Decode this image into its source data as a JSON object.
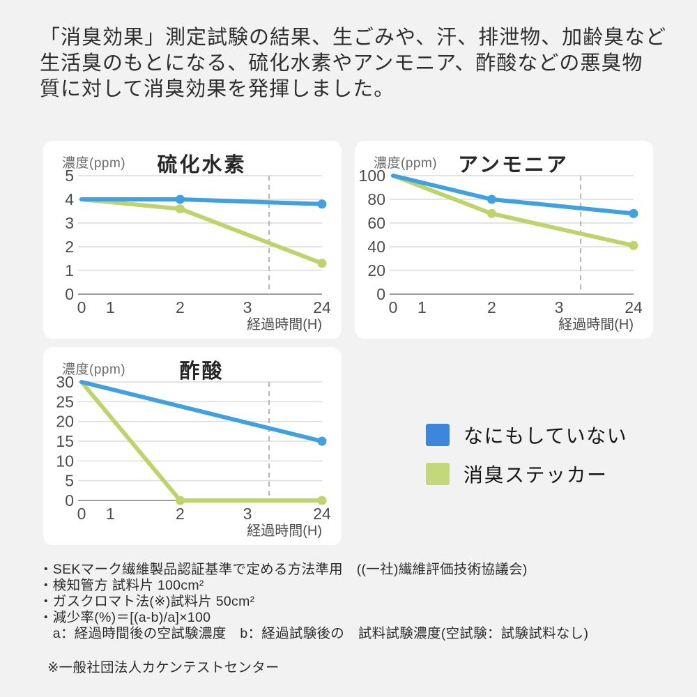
{
  "page": {
    "background": "#f2f2f3",
    "header": {
      "lines": [
        "「消臭効果」測定試験の結果、生ごみや、汗、排泄物、加齢臭など",
        "生活臭のもとになる、硫化水素やアンモニア、酢酸などの悪臭物",
        "質に対して消臭効果を発揮しました。"
      ]
    }
  },
  "chart_data": {
    "type": "line",
    "x_axis_note": "x axis is non-linear: hours 0,1,2,3 then break to 24",
    "legend": {
      "position": "bottom-right",
      "items": [
        {
          "label": "なにもしていない",
          "color": "#3c86db"
        },
        {
          "label": "消臭ステッカー",
          "color": "#c3d878"
        }
      ]
    },
    "colors": {
      "line_blue": "#41a0e0",
      "line_green": "#bdd46b",
      "grid": "#dcdcdc",
      "axis": "#9c9c9c",
      "break_line": "#b3b3b3"
    },
    "charts": [
      {
        "title": "硫化水素",
        "y_label": "濃度(ppm)",
        "x_label": "経過時間(H)",
        "y_max": 5,
        "y_ticks": [
          5,
          4,
          3,
          2,
          1,
          0
        ],
        "x_ticks": [
          {
            "v": 0,
            "f": 0
          },
          {
            "v": 1,
            "f": 0.12
          },
          {
            "v": 2,
            "f": 0.41
          },
          {
            "v": 3,
            "f": 0.69
          },
          {
            "v": 24,
            "f": 1
          }
        ],
        "axis_break_f": 0.78,
        "series": [
          {
            "name": "なにもしていない",
            "color": "#41a0e0",
            "points": [
              {
                "x": 0,
                "y": 4
              },
              {
                "x": 2,
                "y": 4,
                "dot": true
              },
              {
                "x": 24,
                "y": 3.8,
                "dot": true
              }
            ]
          },
          {
            "name": "消臭ステッカー",
            "color": "#bdd46b",
            "points": [
              {
                "x": 0,
                "y": 4
              },
              {
                "x": 2,
                "y": 3.6,
                "dot": true
              },
              {
                "x": 24,
                "y": 1.3,
                "dot": true
              }
            ]
          }
        ]
      },
      {
        "title": "アンモニア",
        "y_label": "濃度(ppm)",
        "x_label": "経過時間(H)",
        "y_max": 100,
        "y_ticks": [
          100,
          80,
          60,
          40,
          20,
          0
        ],
        "x_ticks": [
          {
            "v": 0,
            "f": 0
          },
          {
            "v": 1,
            "f": 0.12
          },
          {
            "v": 2,
            "f": 0.41
          },
          {
            "v": 3,
            "f": 0.69
          },
          {
            "v": 24,
            "f": 1
          }
        ],
        "axis_break_f": 0.78,
        "series": [
          {
            "name": "なにもしていない",
            "color": "#41a0e0",
            "points": [
              {
                "x": 0,
                "y": 100
              },
              {
                "x": 2,
                "y": 80,
                "dot": true
              },
              {
                "x": 24,
                "y": 68,
                "dot": true
              }
            ]
          },
          {
            "name": "消臭ステッカー",
            "color": "#bdd46b",
            "points": [
              {
                "x": 0,
                "y": 100
              },
              {
                "x": 2,
                "y": 68,
                "dot": true
              },
              {
                "x": 24,
                "y": 41,
                "dot": true
              }
            ]
          }
        ]
      },
      {
        "title": "酢酸",
        "y_label": "濃度(ppm)",
        "x_label": "経過時間(H)",
        "y_max": 30,
        "y_ticks": [
          30,
          25,
          20,
          15,
          10,
          5,
          0
        ],
        "x_ticks": [
          {
            "v": 0,
            "f": 0
          },
          {
            "v": 1,
            "f": 0.12
          },
          {
            "v": 2,
            "f": 0.41
          },
          {
            "v": 3,
            "f": 0.69
          },
          {
            "v": 24,
            "f": 1
          }
        ],
        "axis_break_f": 0.78,
        "series": [
          {
            "name": "なにもしていない",
            "color": "#41a0e0",
            "points": [
              {
                "x": 0,
                "y": 30
              },
              {
                "x": 24,
                "y": 15,
                "dot": true
              }
            ]
          },
          {
            "name": "消臭ステッカー",
            "color": "#bdd46b",
            "points": [
              {
                "x": 0,
                "y": 30
              },
              {
                "x": 2,
                "y": 0,
                "dot": true
              },
              {
                "x": 24,
                "y": 0,
                "dot": true
              }
            ]
          }
        ]
      }
    ]
  },
  "footnotes": {
    "lines": [
      "・SEKマーク繊維製品認証基準で定める方法準用　((一社)繊維評価技術協議会)",
      "・検知管方 試料片 100cm²",
      "・ガスクロマト法(※)試料片 50cm²",
      "・減少率(%)＝[(a-b)/a]×100",
      "　a：経過時間後の空試験濃度　b：経過試験後の　試料試験濃度(空試験：試験試料なし)"
    ],
    "agency_note": "※一般社団法人カケンテストセンター"
  }
}
